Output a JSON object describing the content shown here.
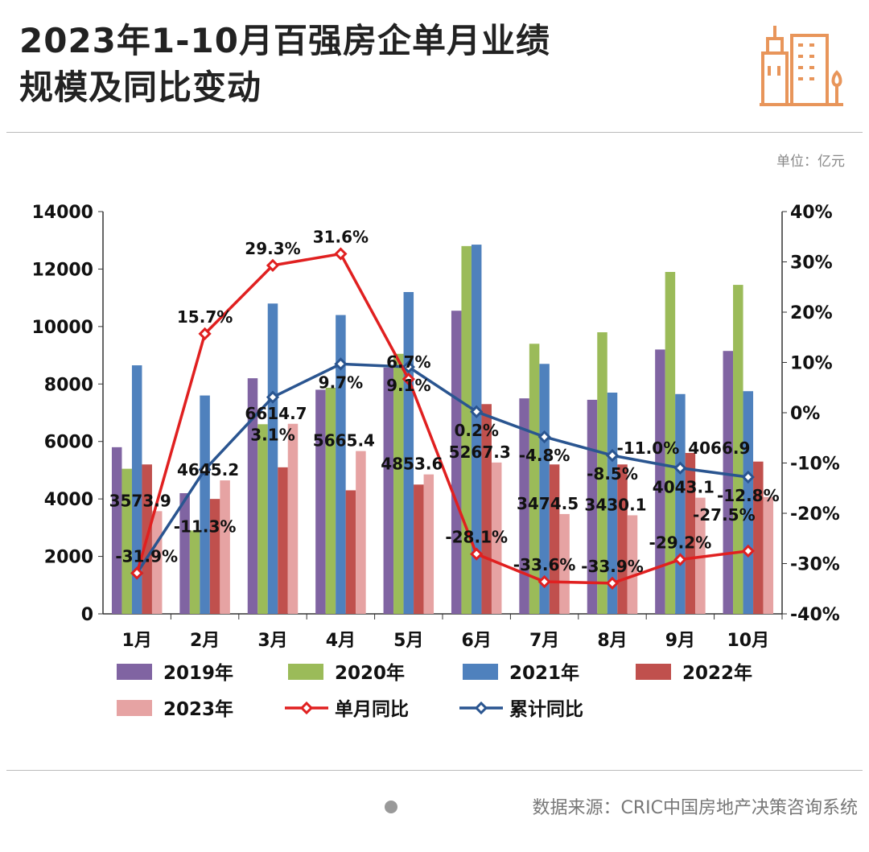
{
  "header": {
    "title_line1": "2023年1-10月百强房企单月业绩",
    "title_line2": "规模及同比变动",
    "unit": "单位：亿元",
    "source": "数据来源：CRIC中国房地产决策咨询系统",
    "icon": "buildings-icon",
    "accent": "#e8955a"
  },
  "chart_data": {
    "type": "bar",
    "categories": [
      "1月",
      "2月",
      "3月",
      "4月",
      "5月",
      "6月",
      "7月",
      "8月",
      "9月",
      "10月"
    ],
    "y_left": {
      "range": [
        0,
        14000
      ],
      "ticks": [
        "0",
        "2000",
        "4000",
        "6000",
        "8000",
        "10000",
        "12000",
        "14000"
      ]
    },
    "y_right": {
      "range": [
        -40,
        40
      ],
      "ticks": [
        "-40%",
        "-30%",
        "-20%",
        "-10%",
        "0%",
        "10%",
        "20%",
        "30%",
        "40%"
      ]
    },
    "grid": false,
    "legend": "bottom",
    "series": [
      {
        "name": "2019年",
        "type": "bar",
        "color": "#8064a2",
        "values": [
          5800,
          4200,
          8200,
          7800,
          8570,
          10550,
          7500,
          7450,
          9200,
          9150
        ]
      },
      {
        "name": "2020年",
        "type": "bar",
        "color": "#9bbb59",
        "values": [
          5050,
          2900,
          6600,
          7870,
          9050,
          12800,
          9400,
          9800,
          11900,
          11450
        ]
      },
      {
        "name": "2021年",
        "type": "bar",
        "color": "#4f81bd",
        "values": [
          8650,
          7600,
          10800,
          10400,
          11200,
          12850,
          8700,
          7700,
          7650,
          7750
        ]
      },
      {
        "name": "2022年",
        "type": "bar",
        "color": "#c0504d",
        "values": [
          5200,
          4000,
          5100,
          4300,
          4500,
          7300,
          5200,
          5200,
          5600,
          5300
        ]
      },
      {
        "name": "2023年",
        "type": "bar",
        "color": "#e6a3a3",
        "values": [
          3573.9,
          4645.2,
          6614.7,
          5665.4,
          4853.6,
          5267.3,
          3474.5,
          3430.1,
          4043.1,
          4066.9
        ],
        "labels": [
          "3573.9",
          "4645.2",
          "6614.7",
          "5665.4",
          "4853.6",
          "5267.3",
          "3474.5",
          "3430.1",
          "4043.1",
          "4066.9"
        ]
      },
      {
        "name": "单月同比",
        "type": "line",
        "axis": "right",
        "color": "#e02020",
        "values": [
          -31.9,
          15.7,
          29.3,
          31.6,
          6.7,
          -28.1,
          -33.6,
          -33.9,
          -29.2,
          -27.5
        ],
        "labels": [
          "-31.9%",
          "15.7%",
          "29.3%",
          "31.6%",
          "6.7%",
          "-28.1%",
          "-33.6%",
          "-33.9%",
          "-29.2%",
          "-27.5%"
        ]
      },
      {
        "name": "累计同比",
        "type": "line",
        "axis": "right",
        "color": "#2a5590",
        "values": [
          -31.9,
          -11.3,
          3.1,
          9.7,
          9.1,
          0.2,
          -4.8,
          -8.5,
          -11.0,
          -12.8
        ],
        "labels": [
          "",
          "-11.3%",
          "3.1%",
          "9.7%",
          "9.1%",
          "0.2%",
          "-4.8%",
          "-8.5%",
          "-11.0%",
          "-12.8%"
        ]
      }
    ]
  }
}
